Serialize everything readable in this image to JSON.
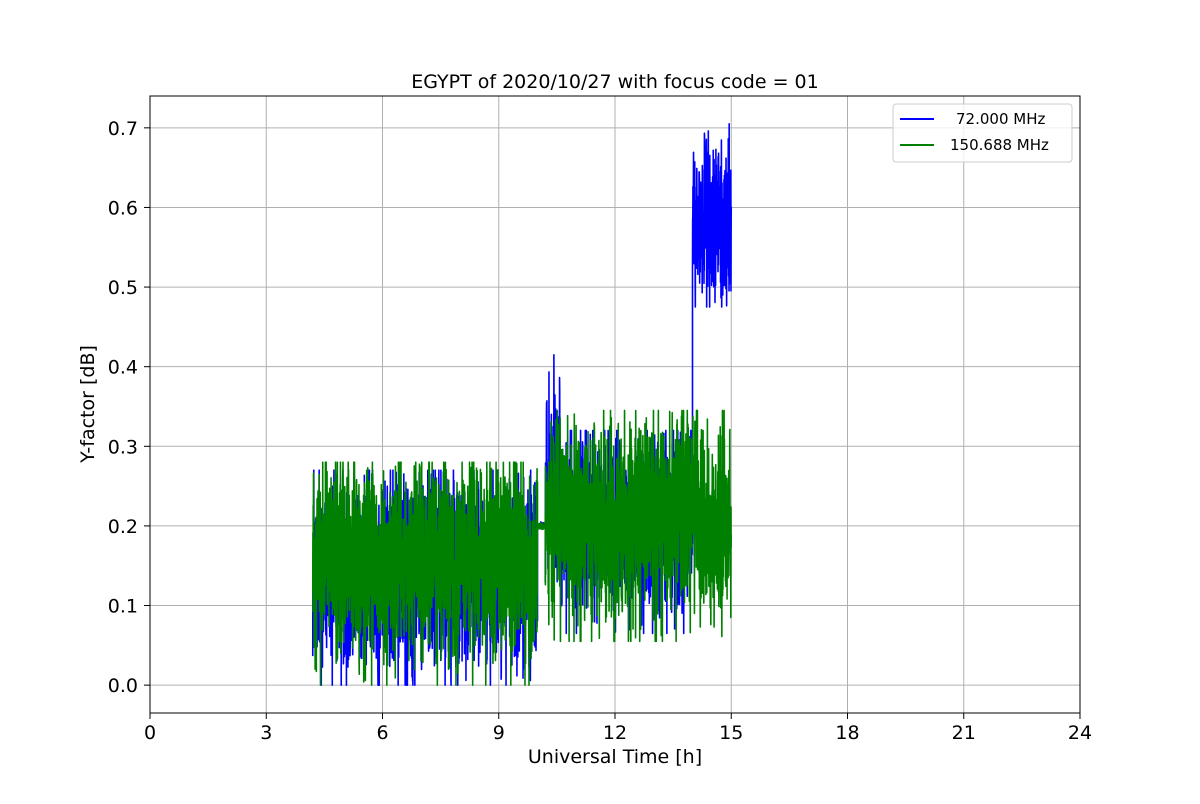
{
  "chart_data": {
    "type": "line",
    "title": "EGYPT of 2020/10/27 with focus code = 01",
    "xlabel": "Universal Time [h]",
    "ylabel": "Y-factor [dB]",
    "xlim": [
      0,
      24
    ],
    "ylim": [
      -0.035,
      0.74
    ],
    "xticks": [
      0,
      3,
      6,
      9,
      12,
      15,
      18,
      21,
      24
    ],
    "yticks": [
      0.0,
      0.1,
      0.2,
      0.3,
      0.4,
      0.5,
      0.6,
      0.7
    ],
    "xtick_labels": [
      "0",
      "3",
      "6",
      "9",
      "12",
      "15",
      "18",
      "21",
      "24"
    ],
    "ytick_labels": [
      "0.0",
      "0.1",
      "0.2",
      "0.3",
      "0.4",
      "0.5",
      "0.6",
      "0.7"
    ],
    "grid": true,
    "legend_position": "top-right",
    "series": [
      {
        "name": "72.000 MHz",
        "color": "#0000ff",
        "segments": [
          {
            "x_start": 4.2,
            "x_end": 10.0,
            "center": 0.14,
            "low": 0.0,
            "high": 0.27
          },
          {
            "x_start": 10.0,
            "x_end": 10.2,
            "center": 0.2,
            "low": 0.195,
            "high": 0.205
          },
          {
            "x_start": 10.2,
            "x_end": 10.6,
            "center": 0.26,
            "low": 0.13,
            "high": 0.415
          },
          {
            "x_start": 10.6,
            "x_end": 14.0,
            "center": 0.2,
            "low": 0.065,
            "high": 0.32
          },
          {
            "x_start": 14.0,
            "x_end": 15.0,
            "center": 0.58,
            "low": 0.475,
            "high": 0.705
          }
        ]
      },
      {
        "name": "150.688 MHz",
        "color": "#008000",
        "segments": [
          {
            "x_start": 4.2,
            "x_end": 10.0,
            "center": 0.16,
            "low": 0.0,
            "high": 0.28
          },
          {
            "x_start": 10.0,
            "x_end": 10.2,
            "center": 0.2,
            "low": 0.195,
            "high": 0.205
          },
          {
            "x_start": 10.2,
            "x_end": 15.0,
            "center": 0.21,
            "low": 0.055,
            "high": 0.345
          }
        ]
      }
    ]
  }
}
